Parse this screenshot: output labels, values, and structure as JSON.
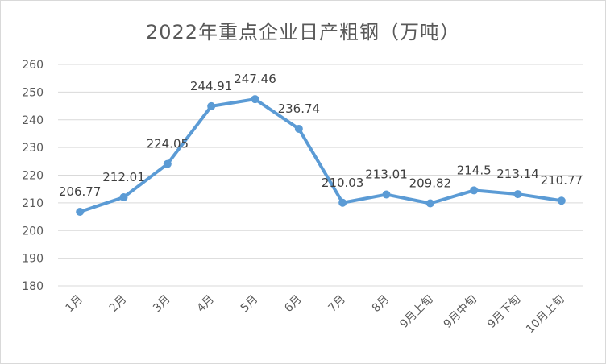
{
  "chart_data": {
    "type": "line",
    "title": "2022年重点企业日产粗钢（万吨）",
    "xlabel": "",
    "ylabel": "",
    "categories": [
      "1月",
      "2月",
      "3月",
      "4月",
      "5月",
      "6月",
      "7月",
      "8月",
      "9月上旬",
      "9月中旬",
      "9月下旬",
      "10月上旬"
    ],
    "series": [
      {
        "values": [
          206.77,
          212.01,
          224.05,
          244.91,
          247.46,
          236.74,
          210.03,
          213.01,
          209.82,
          214.5,
          213.14,
          210.77
        ]
      }
    ],
    "ylim": [
      180,
      260
    ],
    "yticks": [
      180,
      190,
      200,
      210,
      220,
      230,
      240,
      250,
      260
    ],
    "grid": true,
    "legend": "none",
    "line_color": "#5b9bd5",
    "grid_color": "#d9d9d9"
  }
}
